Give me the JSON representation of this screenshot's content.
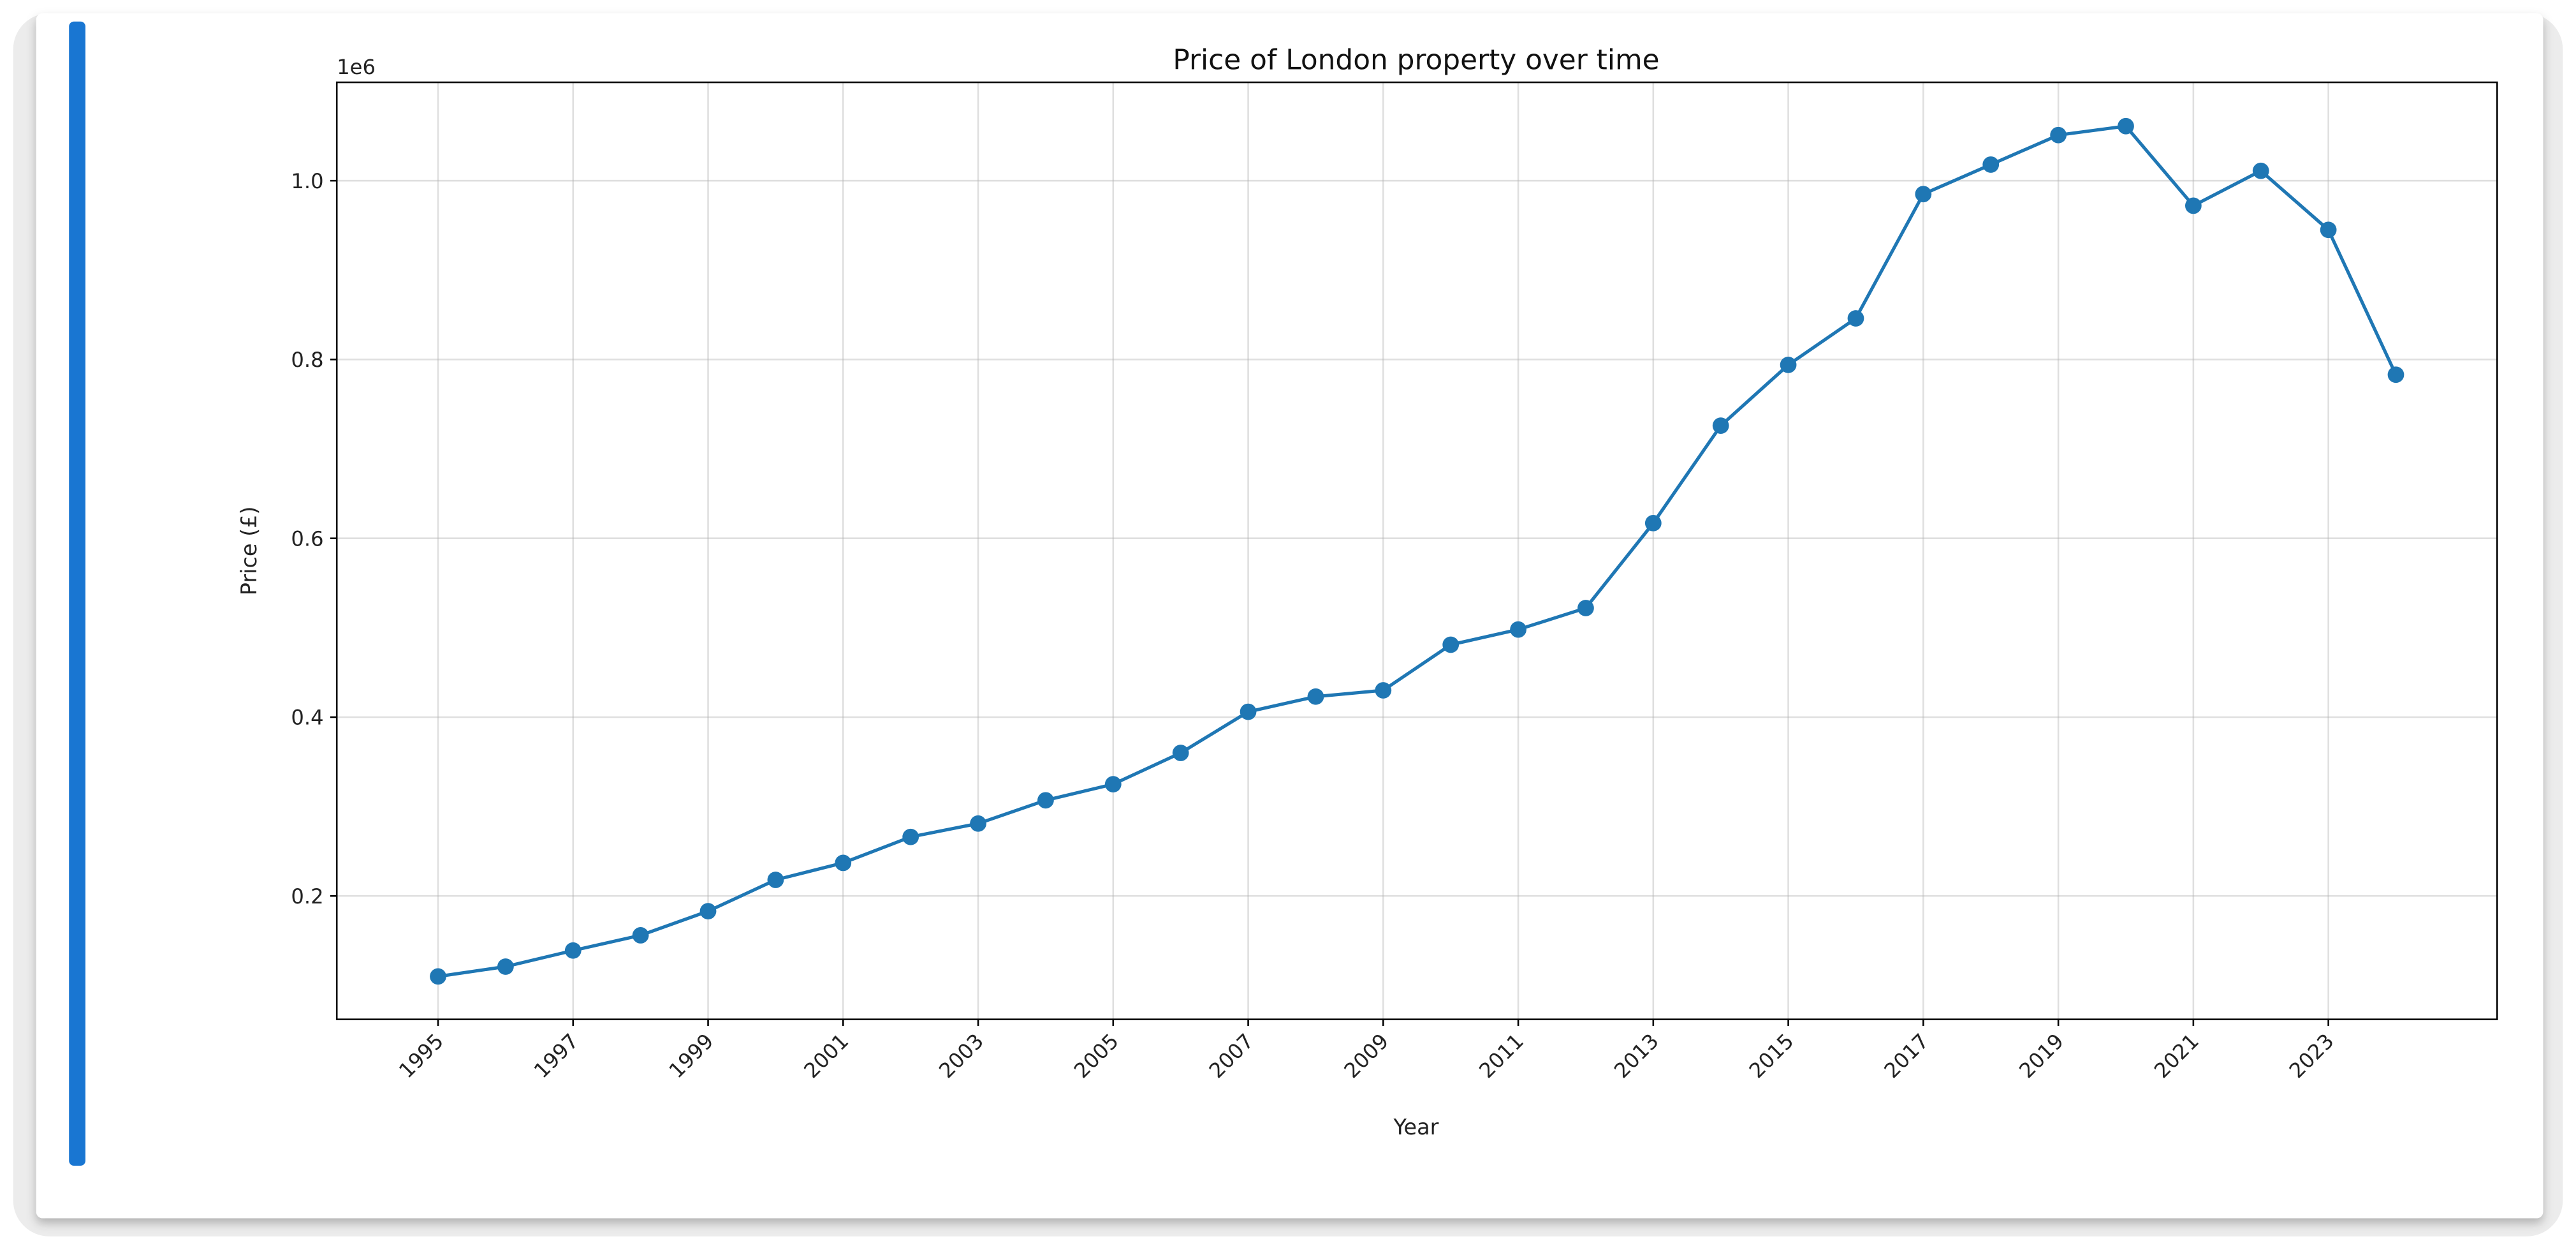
{
  "accent_bar_color": "#1976d2",
  "chart_data": {
    "type": "line",
    "title": "Price of London property over time",
    "xlabel": "Year",
    "ylabel": "Price (£)",
    "y_offset_label": "1e6",
    "series_color": "#1f77b4",
    "grid": true,
    "markers": true,
    "x": [
      1995,
      1996,
      1997,
      1998,
      1999,
      2000,
      2001,
      2002,
      2003,
      2004,
      2005,
      2006,
      2007,
      2008,
      2009,
      2010,
      2011,
      2012,
      2013,
      2014,
      2015,
      2016,
      2017,
      2018,
      2019,
      2020,
      2021,
      2022,
      2023,
      2024
    ],
    "y": [
      110000,
      121000,
      139000,
      156000,
      183000,
      218000,
      237000,
      266000,
      281000,
      307000,
      325000,
      360000,
      406000,
      423000,
      430000,
      481000,
      498000,
      522000,
      617000,
      726000,
      794000,
      846000,
      985000,
      1018000,
      1051000,
      1061000,
      972000,
      1011000,
      945000,
      783000
    ],
    "xlim": [
      1993.5,
      2025.5
    ],
    "ylim": [
      62000,
      1110000
    ],
    "x_ticks": [
      1995,
      1997,
      1999,
      2001,
      2003,
      2005,
      2007,
      2009,
      2011,
      2013,
      2015,
      2017,
      2019,
      2021,
      2023
    ],
    "x_tick_labels": [
      "1995",
      "1997",
      "1999",
      "2001",
      "2003",
      "2005",
      "2007",
      "2009",
      "2011",
      "2013",
      "2015",
      "2017",
      "2019",
      "2021",
      "2023"
    ],
    "y_ticks": [
      200000,
      400000,
      600000,
      800000,
      1000000
    ],
    "y_tick_labels": [
      "0.2",
      "0.4",
      "0.6",
      "0.8",
      "1.0"
    ]
  }
}
